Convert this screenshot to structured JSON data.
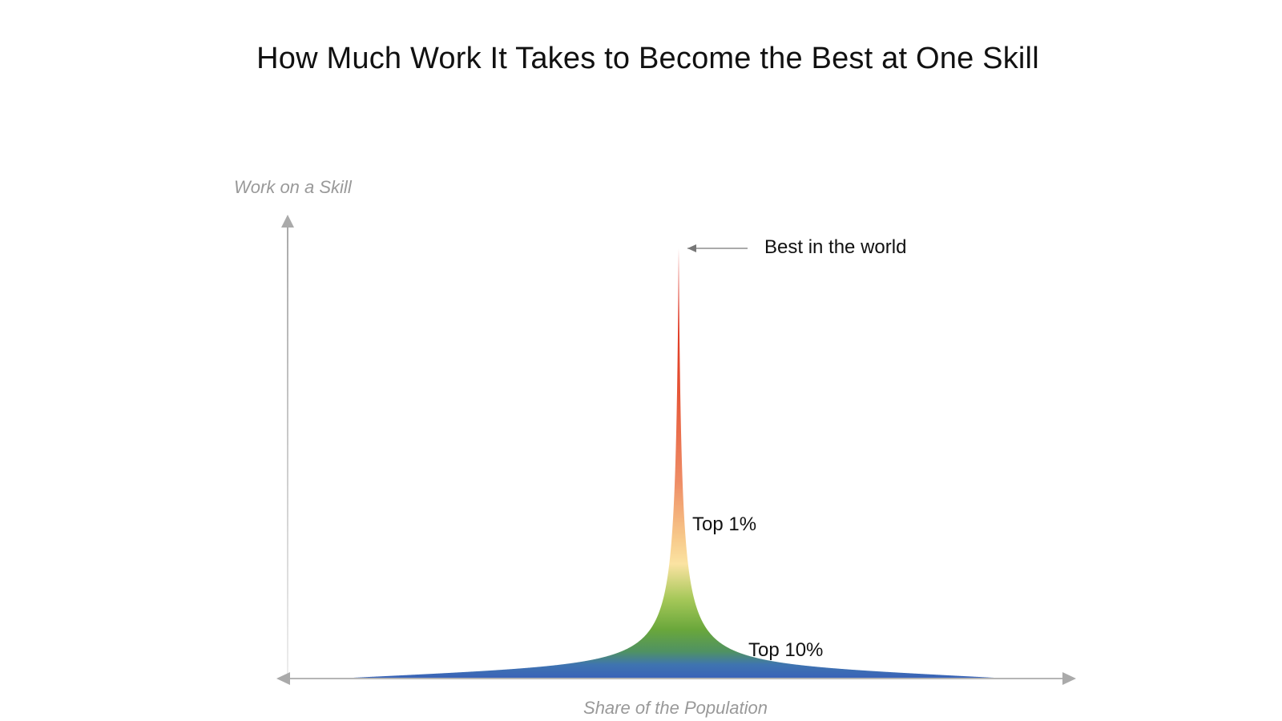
{
  "title": "How Much Work It Takes to Become the Best at One Skill",
  "axes": {
    "y_label": "Work on a Skill",
    "x_label": "Share of the Population"
  },
  "annotations": {
    "peak": "Best in the world",
    "top1": "Top 1%",
    "top10": "Top 10%"
  },
  "colors": {
    "axis": "#aaaaaa",
    "gradient": [
      "#d9251d",
      "#ee7a55",
      "#f7c98a",
      "#fbe3a2",
      "#a6c859",
      "#6aa73b",
      "#4f9262",
      "#3f74b0",
      "#3a64b8"
    ]
  }
}
